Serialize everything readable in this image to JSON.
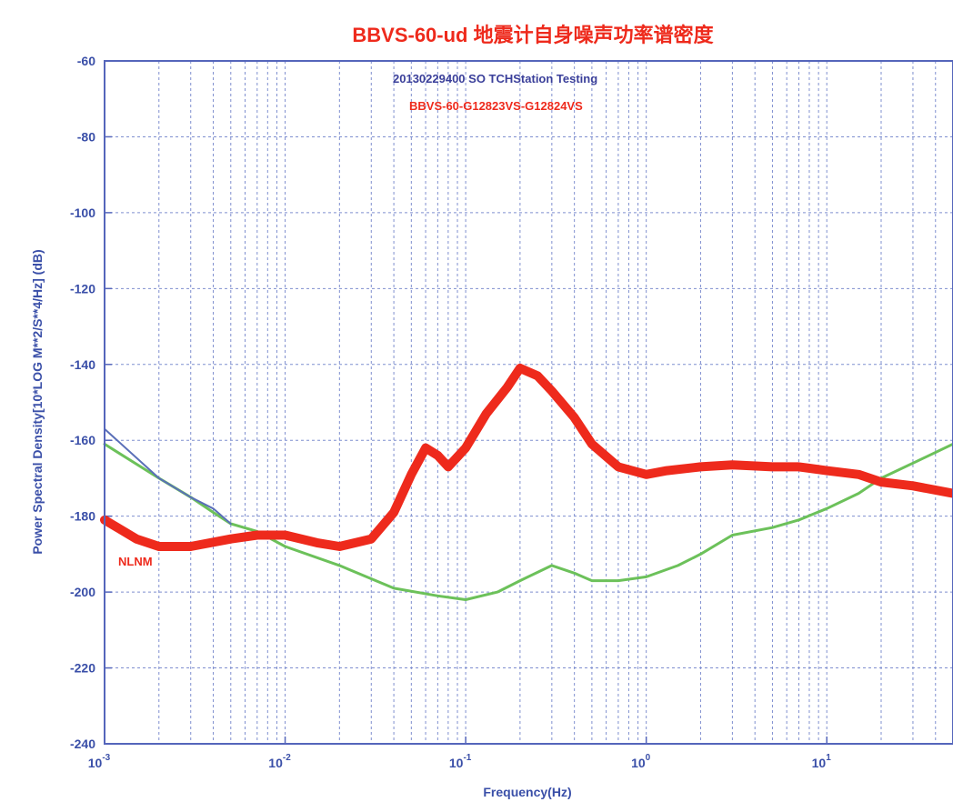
{
  "chart_data": {
    "type": "line",
    "title": "BBVS-60-ud 地震计自身噪声功率谱密度",
    "xlabel": "Frequency(Hz)",
    "ylabel": "Power Spectral Density[10*LOG M**2/S**4/Hz] (dB)",
    "x_scale": "log",
    "xlim": [
      0.001,
      50
    ],
    "ylim": [
      -240,
      -60
    ],
    "grid": true,
    "y_ticks": [
      -60,
      -80,
      -100,
      -120,
      -140,
      -160,
      -180,
      -200,
      -220,
      -240
    ],
    "y_tick_labels": [
      "-60",
      "-80",
      "-100",
      "-120",
      "-140",
      "-160",
      "-180",
      "-200",
      "-220",
      "-240"
    ],
    "x_ticks": [
      0.001,
      0.01,
      0.1,
      1,
      10
    ],
    "x_tick_labels": [
      {
        "base": "10",
        "exp": "-3"
      },
      {
        "base": "10",
        "exp": "-2"
      },
      {
        "base": "10",
        "exp": "-1"
      },
      {
        "base": "10",
        "exp": "0"
      },
      {
        "base": "10",
        "exp": "1"
      }
    ],
    "annotations": {
      "line1": "20130229400 SO TCHStation Testing",
      "line2": "BBVS-60-G12823VS-G12824VS",
      "nlnm": "NLNM"
    },
    "series": [
      {
        "name": "BBVS-60-G12823VS-G12824VS",
        "color": "#ee2a1c",
        "width": 10,
        "x": [
          0.001,
          0.0015,
          0.002,
          0.003,
          0.005,
          0.007,
          0.01,
          0.015,
          0.02,
          0.03,
          0.04,
          0.05,
          0.06,
          0.07,
          0.08,
          0.1,
          0.13,
          0.17,
          0.2,
          0.25,
          0.3,
          0.4,
          0.5,
          0.7,
          1.0,
          1.3,
          2,
          3,
          5,
          7,
          10,
          15,
          20,
          30,
          50
        ],
        "y": [
          -181,
          -186,
          -188,
          -188,
          -186,
          -185,
          -185,
          -187,
          -188,
          -186,
          -179,
          -169,
          -162,
          -164,
          -167,
          -162,
          -153,
          -146,
          -141,
          -143,
          -147,
          -154,
          -161,
          -167,
          -169,
          -168,
          -167,
          -166.5,
          -167,
          -167,
          -168,
          -169,
          -171,
          -172,
          -174
        ]
      },
      {
        "name": "",
        "color": "#5a6fb8",
        "width": 2,
        "x": [
          0.001,
          0.002,
          0.003,
          0.004,
          0.005
        ],
        "y": [
          -157,
          -170,
          -175,
          -178,
          -182
        ]
      },
      {
        "name": "",
        "color": "#6cc15a",
        "width": 3,
        "x": [
          0.001,
          0.002,
          0.003,
          0.004,
          0.005,
          0.007,
          0.01,
          0.02,
          0.04,
          0.07,
          0.1,
          0.15,
          0.2,
          0.3,
          0.4,
          0.5,
          0.7,
          1.0,
          1.5,
          2,
          3,
          5,
          7,
          10,
          15,
          20,
          30,
          50
        ],
        "y": [
          -161,
          -170,
          -175,
          -179,
          -182,
          -184,
          -188,
          -193,
          -199,
          -201,
          -202,
          -200,
          -197,
          -193,
          -195,
          -197,
          -197,
          -196,
          -193,
          -190,
          -185,
          -183,
          -181,
          -178,
          -174,
          -170,
          -166,
          -161
        ]
      }
    ]
  }
}
